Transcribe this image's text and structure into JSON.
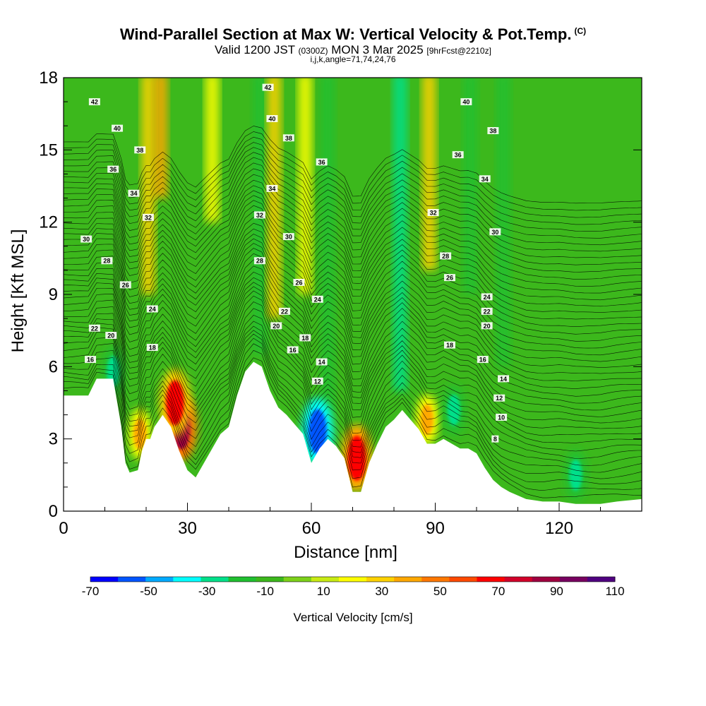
{
  "header": {
    "title": "Wind-Parallel Section at Max W: Vertical Velocity & Pot.Temp.",
    "corner_mark": "(C)",
    "subtitle_main": "Valid 1200 JST",
    "subtitle_utc": "(0300Z)",
    "subtitle_date": "MON 3 Mar 2025",
    "subtitle_fcst": "[9hrFcst@2210z]",
    "subsubtitle": "i,j,k,angle=71,74,24,76"
  },
  "chart_data": {
    "type": "heatmap",
    "title": "Wind-Parallel Section at Max W: Vertical Velocity & Pot.Temp.",
    "xlabel": "Distance [nm]",
    "ylabel": "Height [Kft MSL]",
    "xlim": [
      0,
      140
    ],
    "ylim": [
      0,
      18
    ],
    "x_ticks": [
      0,
      30,
      60,
      90,
      120
    ],
    "y_ticks": [
      0,
      3,
      6,
      9,
      12,
      15,
      18
    ],
    "x_tick_labels": [
      "0",
      "30",
      "60",
      "90",
      "120"
    ],
    "y_tick_labels": [
      "0",
      "3",
      "6",
      "9",
      "12",
      "15",
      "18"
    ],
    "colorbar": {
      "title": "Vertical Velocity [cm/s]",
      "levels": [
        -70,
        -60,
        -50,
        -40,
        -30,
        -20,
        -10,
        0,
        10,
        20,
        30,
        40,
        50,
        60,
        70,
        80,
        90,
        100,
        110
      ],
      "tick_labels": [
        "-70",
        "-50",
        "-30",
        "-10",
        "10",
        "30",
        "50",
        "70",
        "90",
        "110"
      ],
      "colors": [
        "#0000ff",
        "#0055ff",
        "#00aaff",
        "#00ffff",
        "#00e08a",
        "#20c030",
        "#3cb81c",
        "#7dd11a",
        "#c8eb14",
        "#ffff00",
        "#ffd200",
        "#ffa800",
        "#ff7800",
        "#ff4a00",
        "#ff0000",
        "#d2002a",
        "#a00040",
        "#780060",
        "#500080"
      ]
    },
    "terrain_kft": [
      [
        0,
        4.8
      ],
      [
        6,
        4.8
      ],
      [
        8,
        5.5
      ],
      [
        12,
        5.5
      ],
      [
        13,
        4.5
      ],
      [
        14,
        3.5
      ],
      [
        15,
        2.0
      ],
      [
        16,
        1.6
      ],
      [
        18,
        1.7
      ],
      [
        19,
        2.5
      ],
      [
        20,
        3.0
      ],
      [
        21,
        3.0
      ],
      [
        22,
        3.5
      ],
      [
        24,
        4.0
      ],
      [
        26,
        3.5
      ],
      [
        28,
        2.5
      ],
      [
        30,
        1.7
      ],
      [
        32,
        1.4
      ],
      [
        34,
        2.0
      ],
      [
        36,
        2.6
      ],
      [
        38,
        3.2
      ],
      [
        40,
        3.5
      ],
      [
        42,
        4.8
      ],
      [
        44,
        5.8
      ],
      [
        46,
        6.2
      ],
      [
        48,
        6.0
      ],
      [
        50,
        5.0
      ],
      [
        52,
        4.3
      ],
      [
        54,
        4.0
      ],
      [
        56,
        3.6
      ],
      [
        58,
        3.2
      ],
      [
        60,
        2.0
      ],
      [
        62,
        2.6
      ],
      [
        64,
        3.0
      ],
      [
        66,
        2.7
      ],
      [
        68,
        2.2
      ],
      [
        70,
        0.8
      ],
      [
        72,
        0.8
      ],
      [
        74,
        2.0
      ],
      [
        76,
        2.8
      ],
      [
        78,
        3.5
      ],
      [
        80,
        3.8
      ],
      [
        82,
        4.2
      ],
      [
        84,
        3.8
      ],
      [
        86,
        3.4
      ],
      [
        88,
        2.8
      ],
      [
        90,
        2.8
      ],
      [
        92,
        3.0
      ],
      [
        94,
        2.8
      ],
      [
        96,
        2.6
      ],
      [
        98,
        2.6
      ],
      [
        100,
        2.4
      ],
      [
        102,
        1.8
      ],
      [
        104,
        1.3
      ],
      [
        106,
        1.0
      ],
      [
        108,
        0.8
      ],
      [
        112,
        0.5
      ],
      [
        116,
        0.4
      ],
      [
        120,
        0.4
      ],
      [
        124,
        0.3
      ],
      [
        130,
        0.3
      ],
      [
        134,
        0.4
      ],
      [
        140,
        0.5
      ]
    ],
    "w_features": [
      {
        "x": 28.5,
        "y": 3.5,
        "value": 95
      },
      {
        "x": 27.0,
        "y": 4.5,
        "value": 70
      },
      {
        "x": 71.0,
        "y": 2.2,
        "value": 75
      },
      {
        "x": 61.5,
        "y": 3.3,
        "value": -60
      },
      {
        "x": 88.0,
        "y": 3.8,
        "value": 45
      },
      {
        "x": 94.5,
        "y": 4.2,
        "value": -30
      },
      {
        "x": 18.5,
        "y": 3.2,
        "value": 40
      },
      {
        "x": 12.0,
        "y": 5.8,
        "value": -30
      },
      {
        "x": 124.0,
        "y": 1.5,
        "value": -25
      }
    ],
    "w_bands": [
      {
        "x": 20.5,
        "y_from": 9.0,
        "y_to": 18.0,
        "value": 35
      },
      {
        "x": 23.5,
        "y_from": 13.0,
        "y_to": 18.0,
        "value": 40
      },
      {
        "x": 36.0,
        "y_from": 12.0,
        "y_to": 18.0,
        "value": 25
      },
      {
        "x": 47.5,
        "y_from": 6.5,
        "y_to": 18.0,
        "value": -20
      },
      {
        "x": 51.0,
        "y_from": 8.0,
        "y_to": 18.0,
        "value": 30
      },
      {
        "x": 58.5,
        "y_from": 9.0,
        "y_to": 18.0,
        "value": 25
      },
      {
        "x": 64.0,
        "y_from": 4.0,
        "y_to": 18.0,
        "value": -15
      },
      {
        "x": 81.5,
        "y_from": 5.0,
        "y_to": 18.0,
        "value": -25
      },
      {
        "x": 88.5,
        "y_from": 10.0,
        "y_to": 18.0,
        "value": 35
      },
      {
        "x": 98.5,
        "y_from": 9.0,
        "y_to": 18.0,
        "value": -15
      },
      {
        "x": 106.5,
        "y_from": 6.0,
        "y_to": 18.0,
        "value": -18
      }
    ],
    "theta_labels": [
      {
        "text": "42",
        "x": 7.5,
        "y": 17.0
      },
      {
        "text": "40",
        "x": 13.0,
        "y": 15.9
      },
      {
        "text": "38",
        "x": 18.5,
        "y": 15.0
      },
      {
        "text": "36",
        "x": 12.0,
        "y": 14.2
      },
      {
        "text": "34",
        "x": 17.0,
        "y": 13.2
      },
      {
        "text": "32",
        "x": 20.5,
        "y": 12.2
      },
      {
        "text": "30",
        "x": 5.5,
        "y": 11.3
      },
      {
        "text": "28",
        "x": 10.5,
        "y": 10.4
      },
      {
        "text": "26",
        "x": 15.0,
        "y": 9.4
      },
      {
        "text": "24",
        "x": 21.5,
        "y": 8.4
      },
      {
        "text": "22",
        "x": 7.5,
        "y": 7.6
      },
      {
        "text": "20",
        "x": 11.5,
        "y": 7.3
      },
      {
        "text": "18",
        "x": 21.5,
        "y": 6.8
      },
      {
        "text": "16",
        "x": 6.5,
        "y": 6.3
      },
      {
        "text": "42",
        "x": 49.5,
        "y": 17.6
      },
      {
        "text": "40",
        "x": 50.5,
        "y": 16.3
      },
      {
        "text": "38",
        "x": 54.5,
        "y": 15.5
      },
      {
        "text": "36",
        "x": 62.5,
        "y": 14.5
      },
      {
        "text": "34",
        "x": 50.5,
        "y": 13.4
      },
      {
        "text": "32",
        "x": 47.5,
        "y": 12.3
      },
      {
        "text": "30",
        "x": 54.5,
        "y": 11.4
      },
      {
        "text": "28",
        "x": 47.5,
        "y": 10.4
      },
      {
        "text": "26",
        "x": 57.0,
        "y": 9.5
      },
      {
        "text": "24",
        "x": 61.5,
        "y": 8.8
      },
      {
        "text": "22",
        "x": 53.5,
        "y": 8.3
      },
      {
        "text": "20",
        "x": 51.5,
        "y": 7.7
      },
      {
        "text": "18",
        "x": 58.5,
        "y": 7.2
      },
      {
        "text": "16",
        "x": 55.5,
        "y": 6.7
      },
      {
        "text": "14",
        "x": 62.5,
        "y": 6.2
      },
      {
        "text": "12",
        "x": 61.5,
        "y": 5.4
      },
      {
        "text": "40",
        "x": 97.5,
        "y": 17.0
      },
      {
        "text": "38",
        "x": 104.0,
        "y": 15.8
      },
      {
        "text": "36",
        "x": 95.5,
        "y": 14.8
      },
      {
        "text": "34",
        "x": 102.0,
        "y": 13.8
      },
      {
        "text": "32",
        "x": 89.5,
        "y": 12.4
      },
      {
        "text": "30",
        "x": 104.5,
        "y": 11.6
      },
      {
        "text": "28",
        "x": 92.5,
        "y": 10.6
      },
      {
        "text": "26",
        "x": 93.5,
        "y": 9.7
      },
      {
        "text": "24",
        "x": 102.5,
        "y": 8.9
      },
      {
        "text": "22",
        "x": 102.5,
        "y": 8.3
      },
      {
        "text": "20",
        "x": 102.5,
        "y": 7.7
      },
      {
        "text": "18",
        "x": 93.5,
        "y": 6.9
      },
      {
        "text": "16",
        "x": 101.5,
        "y": 6.3
      },
      {
        "text": "14",
        "x": 106.5,
        "y": 5.5
      },
      {
        "text": "12",
        "x": 105.5,
        "y": 4.7
      },
      {
        "text": "10",
        "x": 106.0,
        "y": 3.9
      },
      {
        "text": "8",
        "x": 104.5,
        "y": 3.0
      }
    ]
  }
}
